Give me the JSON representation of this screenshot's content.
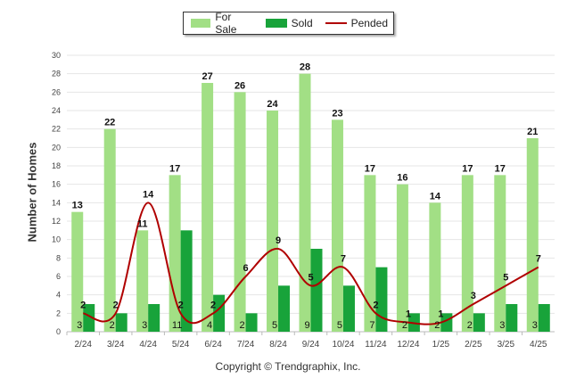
{
  "chart_data": {
    "type": "bar",
    "categories": [
      "2/24",
      "3/24",
      "4/24",
      "5/24",
      "6/24",
      "7/24",
      "8/24",
      "9/24",
      "10/24",
      "11/24",
      "12/24",
      "1/25",
      "2/25",
      "3/25",
      "4/25"
    ],
    "series": [
      {
        "name": "For Sale",
        "type": "bar",
        "color": "#a2df85",
        "values": [
          13,
          22,
          11,
          17,
          27,
          26,
          24,
          28,
          23,
          17,
          16,
          14,
          17,
          17,
          21
        ]
      },
      {
        "name": "Sold",
        "type": "bar",
        "color": "#18a33a",
        "values": [
          3,
          2,
          3,
          11,
          4,
          2,
          5,
          9,
          5,
          7,
          2,
          2,
          2,
          3,
          3
        ]
      },
      {
        "name": "Pended",
        "type": "line",
        "color": "#b00000",
        "values": [
          2,
          2,
          14,
          2,
          2,
          6,
          9,
          5,
          7,
          2,
          1,
          1,
          3,
          5,
          7
        ]
      }
    ],
    "ylabel": "Number of Homes",
    "xlabel": "",
    "ylim": [
      0,
      30
    ],
    "yticks": [
      0,
      2,
      4,
      6,
      8,
      10,
      12,
      14,
      16,
      18,
      20,
      22,
      24,
      26,
      28,
      30
    ],
    "grid": true,
    "legend_position": "top-center"
  },
  "copyright": "Copyright © Trendgraphix, Inc."
}
